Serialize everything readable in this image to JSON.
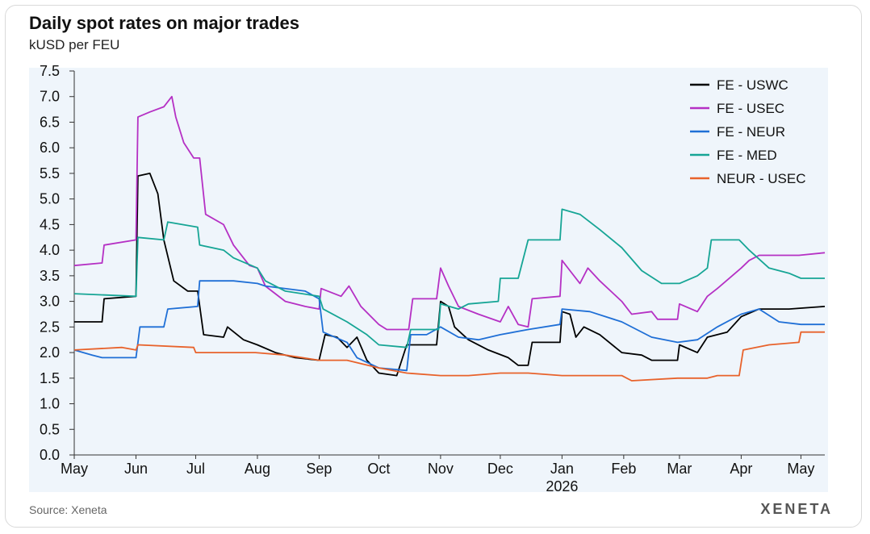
{
  "header": {
    "title": "Daily spot rates on major trades",
    "subtitle": "kUSD per FEU"
  },
  "footer": {
    "source": "Source: Xeneta",
    "logo": "XENETA"
  },
  "chart_data": {
    "type": "line",
    "title": "Daily spot rates on major trades",
    "ylabel": "kUSD per FEU",
    "xlabel": "",
    "x_range": [
      "2025-05-01",
      "2026-05-13"
    ],
    "ylim": [
      0,
      7.5
    ],
    "y_ticks": [
      "0.0",
      "0.5",
      "1.0",
      "1.5",
      "2.0",
      "2.5",
      "3.0",
      "3.5",
      "4.0",
      "4.5",
      "5.0",
      "5.5",
      "6.0",
      "6.5",
      "7.0",
      "7.5"
    ],
    "x_ticks": [
      {
        "label": "May",
        "date": "2025-05-01"
      },
      {
        "label": "Jun",
        "date": "2025-06-01"
      },
      {
        "label": "Jul",
        "date": "2025-07-01"
      },
      {
        "label": "Aug",
        "date": "2025-08-01"
      },
      {
        "label": "Sep",
        "date": "2025-09-01"
      },
      {
        "label": "Oct",
        "date": "2025-10-01"
      },
      {
        "label": "Nov",
        "date": "2025-11-01"
      },
      {
        "label": "Dec",
        "date": "2025-12-01"
      },
      {
        "label": "Jan",
        "date": "2026-01-01",
        "sublabel": "2026"
      },
      {
        "label": "Feb",
        "date": "2026-02-01"
      },
      {
        "label": "Mar",
        "date": "2026-03-01"
      },
      {
        "label": "Apr",
        "date": "2026-04-01"
      },
      {
        "label": "May",
        "date": "2026-05-01"
      }
    ],
    "grid": false,
    "legend_position": "top-right",
    "series": [
      {
        "name": "FE - USWC",
        "color": "#000000",
        "points": [
          [
            "2025-05-01",
            2.6
          ],
          [
            "2025-05-15",
            2.6
          ],
          [
            "2025-05-16",
            3.05
          ],
          [
            "2025-06-01",
            3.1
          ],
          [
            "2025-06-02",
            5.45
          ],
          [
            "2025-06-08",
            5.5
          ],
          [
            "2025-06-12",
            5.1
          ],
          [
            "2025-06-15",
            4.2
          ],
          [
            "2025-06-20",
            3.4
          ],
          [
            "2025-06-27",
            3.2
          ],
          [
            "2025-07-02",
            3.2
          ],
          [
            "2025-07-05",
            2.35
          ],
          [
            "2025-07-15",
            2.3
          ],
          [
            "2025-07-17",
            2.5
          ],
          [
            "2025-07-25",
            2.25
          ],
          [
            "2025-08-01",
            2.15
          ],
          [
            "2025-08-10",
            2.0
          ],
          [
            "2025-08-20",
            1.9
          ],
          [
            "2025-09-01",
            1.85
          ],
          [
            "2025-09-04",
            2.35
          ],
          [
            "2025-09-10",
            2.3
          ],
          [
            "2025-09-15",
            2.1
          ],
          [
            "2025-09-20",
            2.3
          ],
          [
            "2025-09-25",
            1.85
          ],
          [
            "2025-10-01",
            1.6
          ],
          [
            "2025-10-10",
            1.55
          ],
          [
            "2025-10-15",
            2.15
          ],
          [
            "2025-10-30",
            2.15
          ],
          [
            "2025-11-01",
            3.0
          ],
          [
            "2025-11-05",
            2.9
          ],
          [
            "2025-11-08",
            2.5
          ],
          [
            "2025-11-15",
            2.25
          ],
          [
            "2025-11-25",
            2.05
          ],
          [
            "2025-12-05",
            1.9
          ],
          [
            "2025-12-10",
            1.75
          ],
          [
            "2025-12-15",
            1.75
          ],
          [
            "2025-12-17",
            2.2
          ],
          [
            "2025-12-31",
            2.2
          ],
          [
            "2026-01-01",
            2.8
          ],
          [
            "2026-01-05",
            2.75
          ],
          [
            "2026-01-08",
            2.3
          ],
          [
            "2026-01-12",
            2.5
          ],
          [
            "2026-01-20",
            2.35
          ],
          [
            "2026-01-31",
            2.0
          ],
          [
            "2026-02-10",
            1.95
          ],
          [
            "2026-02-15",
            1.85
          ],
          [
            "2026-02-28",
            1.85
          ],
          [
            "2026-03-01",
            2.15
          ],
          [
            "2026-03-10",
            2.0
          ],
          [
            "2026-03-15",
            2.3
          ],
          [
            "2026-03-25",
            2.4
          ],
          [
            "2026-04-01",
            2.7
          ],
          [
            "2026-04-10",
            2.85
          ],
          [
            "2026-04-25",
            2.85
          ],
          [
            "2026-05-13",
            2.9
          ]
        ]
      },
      {
        "name": "FE - USEC",
        "color": "#b530c4",
        "points": [
          [
            "2025-05-01",
            3.7
          ],
          [
            "2025-05-15",
            3.75
          ],
          [
            "2025-05-16",
            4.1
          ],
          [
            "2025-06-01",
            4.2
          ],
          [
            "2025-06-02",
            6.6
          ],
          [
            "2025-06-08",
            6.7
          ],
          [
            "2025-06-15",
            6.8
          ],
          [
            "2025-06-19",
            7.0
          ],
          [
            "2025-06-21",
            6.6
          ],
          [
            "2025-06-25",
            6.1
          ],
          [
            "2025-06-30",
            5.8
          ],
          [
            "2025-07-03",
            5.8
          ],
          [
            "2025-07-06",
            4.7
          ],
          [
            "2025-07-15",
            4.5
          ],
          [
            "2025-07-20",
            4.1
          ],
          [
            "2025-07-28",
            3.7
          ],
          [
            "2025-08-01",
            3.65
          ],
          [
            "2025-08-05",
            3.3
          ],
          [
            "2025-08-15",
            3.0
          ],
          [
            "2025-08-25",
            2.9
          ],
          [
            "2025-09-01",
            2.85
          ],
          [
            "2025-09-02",
            3.25
          ],
          [
            "2025-09-12",
            3.1
          ],
          [
            "2025-09-16",
            3.3
          ],
          [
            "2025-09-22",
            2.9
          ],
          [
            "2025-10-01",
            2.55
          ],
          [
            "2025-10-05",
            2.45
          ],
          [
            "2025-10-16",
            2.45
          ],
          [
            "2025-10-18",
            3.05
          ],
          [
            "2025-10-30",
            3.05
          ],
          [
            "2025-11-01",
            3.65
          ],
          [
            "2025-11-05",
            3.3
          ],
          [
            "2025-11-10",
            2.9
          ],
          [
            "2025-11-20",
            2.75
          ],
          [
            "2025-12-01",
            2.6
          ],
          [
            "2025-12-05",
            2.9
          ],
          [
            "2025-12-10",
            2.55
          ],
          [
            "2025-12-15",
            2.5
          ],
          [
            "2025-12-17",
            3.05
          ],
          [
            "2025-12-31",
            3.1
          ],
          [
            "2026-01-01",
            3.8
          ],
          [
            "2026-01-05",
            3.6
          ],
          [
            "2026-01-10",
            3.35
          ],
          [
            "2026-01-14",
            3.65
          ],
          [
            "2026-01-20",
            3.4
          ],
          [
            "2026-01-31",
            3.0
          ],
          [
            "2026-02-05",
            2.75
          ],
          [
            "2026-02-15",
            2.8
          ],
          [
            "2026-02-18",
            2.65
          ],
          [
            "2026-02-28",
            2.65
          ],
          [
            "2026-03-01",
            2.95
          ],
          [
            "2026-03-10",
            2.8
          ],
          [
            "2026-03-15",
            3.1
          ],
          [
            "2026-03-20",
            3.25
          ],
          [
            "2026-04-01",
            3.65
          ],
          [
            "2026-04-05",
            3.8
          ],
          [
            "2026-04-10",
            3.9
          ],
          [
            "2026-04-30",
            3.9
          ],
          [
            "2026-05-13",
            3.95
          ]
        ]
      },
      {
        "name": "FE - NEUR",
        "color": "#1f6fd6",
        "points": [
          [
            "2025-05-01",
            2.05
          ],
          [
            "2025-05-10",
            1.95
          ],
          [
            "2025-05-15",
            1.9
          ],
          [
            "2025-06-01",
            1.9
          ],
          [
            "2025-06-03",
            2.5
          ],
          [
            "2025-06-15",
            2.5
          ],
          [
            "2025-06-17",
            2.85
          ],
          [
            "2025-07-02",
            2.9
          ],
          [
            "2025-07-03",
            3.4
          ],
          [
            "2025-07-20",
            3.4
          ],
          [
            "2025-08-01",
            3.35
          ],
          [
            "2025-08-05",
            3.3
          ],
          [
            "2025-08-25",
            3.2
          ],
          [
            "2025-09-01",
            3.05
          ],
          [
            "2025-09-03",
            2.4
          ],
          [
            "2025-09-15",
            2.2
          ],
          [
            "2025-09-20",
            1.9
          ],
          [
            "2025-10-01",
            1.7
          ],
          [
            "2025-10-15",
            1.65
          ],
          [
            "2025-10-17",
            2.35
          ],
          [
            "2025-10-25",
            2.35
          ],
          [
            "2025-11-01",
            2.5
          ],
          [
            "2025-11-10",
            2.3
          ],
          [
            "2025-11-20",
            2.25
          ],
          [
            "2025-12-01",
            2.35
          ],
          [
            "2025-12-15",
            2.45
          ],
          [
            "2025-12-31",
            2.55
          ],
          [
            "2026-01-01",
            2.85
          ],
          [
            "2026-01-15",
            2.8
          ],
          [
            "2026-01-31",
            2.6
          ],
          [
            "2026-02-15",
            2.3
          ],
          [
            "2026-02-28",
            2.2
          ],
          [
            "2026-03-10",
            2.25
          ],
          [
            "2026-03-20",
            2.5
          ],
          [
            "2026-04-01",
            2.75
          ],
          [
            "2026-04-10",
            2.85
          ],
          [
            "2026-04-20",
            2.6
          ],
          [
            "2026-05-01",
            2.55
          ],
          [
            "2026-05-13",
            2.55
          ]
        ]
      },
      {
        "name": "FE - MED",
        "color": "#16a595",
        "points": [
          [
            "2025-05-01",
            3.15
          ],
          [
            "2025-06-01",
            3.1
          ],
          [
            "2025-06-02",
            4.25
          ],
          [
            "2025-06-15",
            4.2
          ],
          [
            "2025-06-17",
            4.55
          ],
          [
            "2025-07-02",
            4.45
          ],
          [
            "2025-07-03",
            4.1
          ],
          [
            "2025-07-15",
            4.0
          ],
          [
            "2025-07-20",
            3.85
          ],
          [
            "2025-08-01",
            3.65
          ],
          [
            "2025-08-05",
            3.4
          ],
          [
            "2025-08-15",
            3.2
          ],
          [
            "2025-09-01",
            3.1
          ],
          [
            "2025-09-03",
            2.85
          ],
          [
            "2025-09-15",
            2.6
          ],
          [
            "2025-09-25",
            2.35
          ],
          [
            "2025-10-01",
            2.15
          ],
          [
            "2025-10-15",
            2.1
          ],
          [
            "2025-10-17",
            2.45
          ],
          [
            "2025-10-31",
            2.45
          ],
          [
            "2025-11-01",
            2.95
          ],
          [
            "2025-11-10",
            2.85
          ],
          [
            "2025-11-15",
            2.95
          ],
          [
            "2025-11-30",
            3.0
          ],
          [
            "2025-12-01",
            3.45
          ],
          [
            "2025-12-10",
            3.45
          ],
          [
            "2025-12-15",
            4.2
          ],
          [
            "2025-12-31",
            4.2
          ],
          [
            "2026-01-01",
            4.8
          ],
          [
            "2026-01-10",
            4.7
          ],
          [
            "2026-01-20",
            4.4
          ],
          [
            "2026-01-31",
            4.05
          ],
          [
            "2026-02-10",
            3.6
          ],
          [
            "2026-02-20",
            3.35
          ],
          [
            "2026-03-01",
            3.35
          ],
          [
            "2026-03-10",
            3.5
          ],
          [
            "2026-03-15",
            3.65
          ],
          [
            "2026-03-17",
            4.2
          ],
          [
            "2026-03-31",
            4.2
          ],
          [
            "2026-04-05",
            4.0
          ],
          [
            "2026-04-15",
            3.65
          ],
          [
            "2026-04-25",
            3.55
          ],
          [
            "2026-05-01",
            3.45
          ],
          [
            "2026-05-13",
            3.45
          ]
        ]
      },
      {
        "name": "NEUR - USEC",
        "color": "#e8622b",
        "points": [
          [
            "2025-05-01",
            2.05
          ],
          [
            "2025-05-25",
            2.1
          ],
          [
            "2025-06-01",
            2.05
          ],
          [
            "2025-06-02",
            2.15
          ],
          [
            "2025-06-30",
            2.1
          ],
          [
            "2025-07-01",
            2.0
          ],
          [
            "2025-07-31",
            2.0
          ],
          [
            "2025-08-15",
            1.95
          ],
          [
            "2025-09-01",
            1.85
          ],
          [
            "2025-09-15",
            1.85
          ],
          [
            "2025-10-01",
            1.7
          ],
          [
            "2025-10-15",
            1.6
          ],
          [
            "2025-11-01",
            1.55
          ],
          [
            "2025-11-15",
            1.55
          ],
          [
            "2025-12-01",
            1.6
          ],
          [
            "2025-12-15",
            1.6
          ],
          [
            "2026-01-01",
            1.55
          ],
          [
            "2026-01-31",
            1.55
          ],
          [
            "2026-02-05",
            1.45
          ],
          [
            "2026-02-28",
            1.5
          ],
          [
            "2026-03-15",
            1.5
          ],
          [
            "2026-03-20",
            1.55
          ],
          [
            "2026-03-31",
            1.55
          ],
          [
            "2026-04-02",
            2.05
          ],
          [
            "2026-04-15",
            2.15
          ],
          [
            "2026-04-30",
            2.2
          ],
          [
            "2026-05-01",
            2.4
          ],
          [
            "2026-05-13",
            2.4
          ]
        ]
      }
    ]
  }
}
